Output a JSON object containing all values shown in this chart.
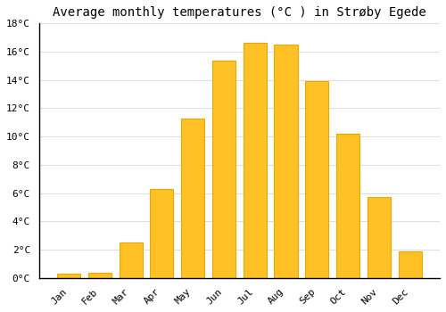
{
  "title": "Average monthly temperatures (°C ) in Strøby Egede",
  "months": [
    "Jan",
    "Feb",
    "Mar",
    "Apr",
    "May",
    "Jun",
    "Jul",
    "Aug",
    "Sep",
    "Oct",
    "Nov",
    "Dec"
  ],
  "values": [
    0.3,
    0.4,
    2.5,
    6.3,
    11.3,
    15.4,
    16.6,
    16.5,
    13.9,
    10.2,
    5.7,
    1.9
  ],
  "bar_color": "#FFC125",
  "bar_edge_color": "#E8A800",
  "background_color": "#FFFFFF",
  "grid_color": "#DDDDDD",
  "title_fontsize": 10,
  "tick_label_fontsize": 8,
  "ylim": [
    0,
    18
  ],
  "yticks": [
    0,
    2,
    4,
    6,
    8,
    10,
    12,
    14,
    16,
    18
  ]
}
